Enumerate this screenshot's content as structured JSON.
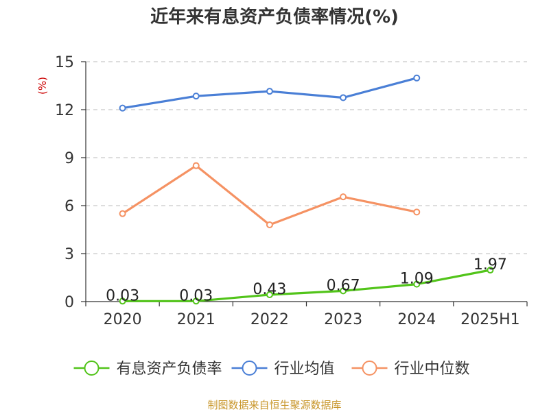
{
  "chart_data": {
    "type": "line",
    "title": "近年来有息资产负债率情况(%)",
    "ylabel": "(%)",
    "xlabel": "",
    "categories": [
      "2020",
      "2021",
      "2022",
      "2023",
      "2024",
      "2025H1"
    ],
    "ylim": [
      0,
      15
    ],
    "yticks": [
      0,
      3,
      6,
      9,
      12,
      15
    ],
    "grid": true,
    "legend_position": "bottom",
    "series": [
      {
        "name": "有息资产负债率",
        "color": "#52c41a",
        "values": [
          0.03,
          0.03,
          0.43,
          0.67,
          1.09,
          1.97
        ],
        "labels": [
          "0.03",
          "0.03",
          "0.43",
          "0.67",
          "1.09",
          "1.97"
        ],
        "show_labels": true
      },
      {
        "name": "行业均值",
        "color": "#4a7fd6",
        "values": [
          12.1,
          12.85,
          13.15,
          12.75,
          13.98,
          null
        ],
        "show_labels": false
      },
      {
        "name": "行业中位数",
        "color": "#f59263",
        "values": [
          5.5,
          8.5,
          4.8,
          6.55,
          5.6,
          null
        ],
        "show_labels": false
      }
    ],
    "source": "制图数据来自恒生聚源数据库"
  }
}
